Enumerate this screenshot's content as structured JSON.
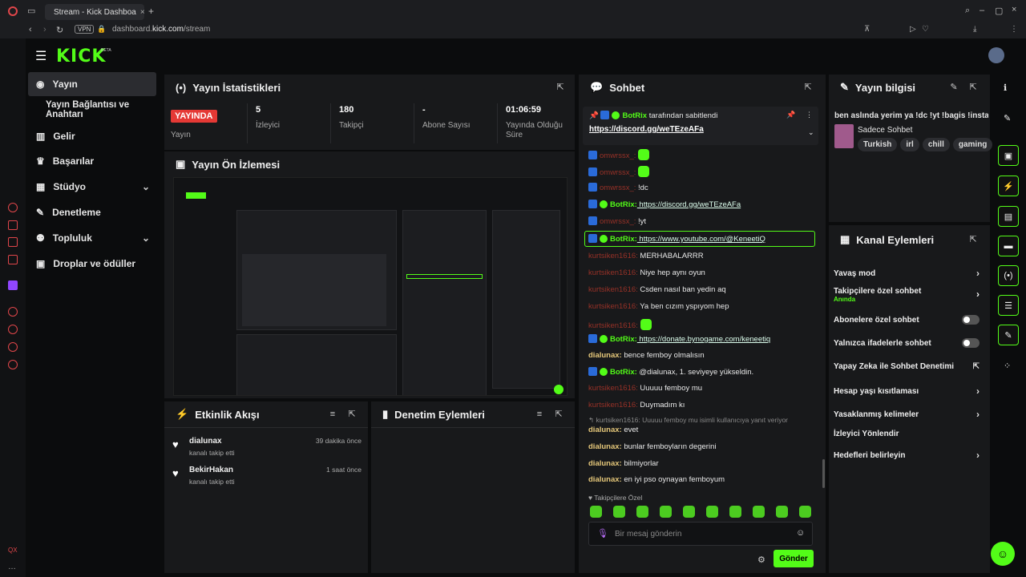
{
  "browser": {
    "tab_title": "Stream - Kick Dashboa",
    "url_domain_pre": "dashboard.",
    "url_domain": "kick.com",
    "url_path": "/stream",
    "vpn": "VPN"
  },
  "brand": {
    "logo": "KICK",
    "beta": "BETA"
  },
  "sidebar": {
    "items": [
      {
        "label": "Yayın",
        "icon": "broadcast-icon"
      },
      {
        "label": "Yayın Bağlantısı ve Anahtarı",
        "icon": ""
      },
      {
        "label": "Gelir",
        "icon": "chart-icon"
      },
      {
        "label": "Başarılar",
        "icon": "trophy-icon"
      },
      {
        "label": "Stüdyo",
        "icon": "grid-icon"
      },
      {
        "label": "Denetleme",
        "icon": "wrench-icon"
      },
      {
        "label": "Topluluk",
        "icon": "users-icon"
      },
      {
        "label": "Droplar ve ödüller",
        "icon": "gift-icon"
      }
    ]
  },
  "stats": {
    "title": "Yayın İstatistikleri",
    "live_badge": "YAYINDA",
    "live_label": "Yayın",
    "viewers": "5",
    "viewers_label": "İzleyici",
    "followers": "180",
    "followers_label": "Takipçi",
    "subs": "-",
    "subs_label": "Abone Sayısı",
    "uptime": "01:06:59",
    "uptime_label": "Yayında Olduğu Süre"
  },
  "preview": {
    "title": "Yayın Ön İzlemesi"
  },
  "activity": {
    "title": "Etkinlik Akışı",
    "events": [
      {
        "name": "dialunax",
        "sub": "kanalı takip etti",
        "time": "39 dakika önce"
      },
      {
        "name": "BekirHakan",
        "sub": "kanalı takip etti",
        "time": "1 saat önce"
      }
    ]
  },
  "modactions": {
    "title": "Denetim Eylemleri"
  },
  "chat": {
    "title": "Sohbet",
    "pinned_by": "BotRix",
    "pinned_suffix": "tarafından sabitlendi",
    "pinned_link": "https://discord.gg/weTEzeAFa",
    "messages": [
      {
        "user": "omwrssx_:",
        "type": "red",
        "text": "",
        "emote": true
      },
      {
        "user": "omwrssx_:",
        "type": "red",
        "text": "",
        "emote": true
      },
      {
        "user": "omwrssx_:",
        "type": "red",
        "text": " !dc"
      },
      {
        "user": "BotRix:",
        "type": "bot",
        "text": " https://discord.gg/weTEzeAFa",
        "link": true
      },
      {
        "user": "omwrssx_:",
        "type": "red",
        "text": " !yt"
      },
      {
        "user": "BotRix:",
        "type": "bot",
        "text": " https://www.youtube.com/@KeneetiQ",
        "link": true,
        "hl": true
      },
      {
        "user": "kurtsiken1616:",
        "type": "red",
        "text": " MERHABALARRR"
      },
      {
        "user": "kurtsiken1616:",
        "type": "red",
        "text": " Niye hep aynı oyun"
      },
      {
        "user": "kurtsiken1616:",
        "type": "red",
        "text": " Csden nasıl ban yedin aq"
      },
      {
        "user": "kurtsiken1616:",
        "type": "red",
        "text": " Ya ben cızım yspıyom hep"
      },
      {
        "user": "kurtsiken1616:",
        "type": "red",
        "text": "",
        "emote": true
      },
      {
        "user": "BotRix:",
        "type": "bot",
        "text": " https://donate.bynogame.com/keneetiq",
        "link": true
      },
      {
        "user": "dialunax:",
        "type": "yel",
        "text": " bence femboy olmalısın"
      },
      {
        "user": "BotRix:",
        "type": "bot",
        "text": " @dialunax, 1. seviyeye yükseldin."
      },
      {
        "user": "kurtsiken1616:",
        "type": "red",
        "text": " Uuuuu femboy mu"
      },
      {
        "user": "kurtsiken1616:",
        "type": "red",
        "text": " Duymadım kı"
      }
    ],
    "reply_hint": "kurtsiken1616: Uuuuu femboy mu isimli kullanıcıya yanıt veriyor",
    "messages2": [
      {
        "user": "dialunax:",
        "text": " evet"
      },
      {
        "user": "dialunax:",
        "text": " bunlar femboyların degerini"
      },
      {
        "user": "dialunax:",
        "text": " bilmiyorlar"
      },
      {
        "user": "dialunax:",
        "text": " en iyi pso oynayan femboyum"
      }
    ],
    "followers_only": "Takipçilere Özel",
    "input_placeholder": "Bir mesaj gönderin",
    "send": "Gönder"
  },
  "streaminfo": {
    "title": "Yayın bilgisi",
    "stream_title": "ben aslında yerim ya !dc !yt !bagis !insta",
    "category": "Sadece Sohbet",
    "tags": [
      "Turkish",
      "irl",
      "chill",
      "gaming"
    ]
  },
  "channelactions": {
    "title": "Kanal Eylemleri",
    "items": [
      {
        "label": "Yavaş mod",
        "ctrl": "arrow"
      },
      {
        "label": "Takipçilere özel sohbet",
        "sub": "Anında",
        "ctrl": "arrow"
      },
      {
        "label": "Abonelere özel sohbet",
        "ctrl": "toggle"
      },
      {
        "label": "Yalnızca ifadelerle sohbet",
        "ctrl": "toggle"
      },
      {
        "label": "Yapay Zeka ile Sohbet Denetimi",
        "ctrl": "ext"
      },
      {
        "label": "Hesap yaşı kısıtlaması",
        "ctrl": "arrow"
      },
      {
        "label": "Yasaklanmış kelimeler",
        "ctrl": "arrow"
      },
      {
        "label": "İzleyici Yönlendir",
        "ctrl": ""
      },
      {
        "label": "Hedefleri belirleyin",
        "ctrl": "arrow"
      }
    ]
  },
  "colors": {
    "accent": "#53fc18",
    "live": "#e53935",
    "panel": "#18191b"
  }
}
